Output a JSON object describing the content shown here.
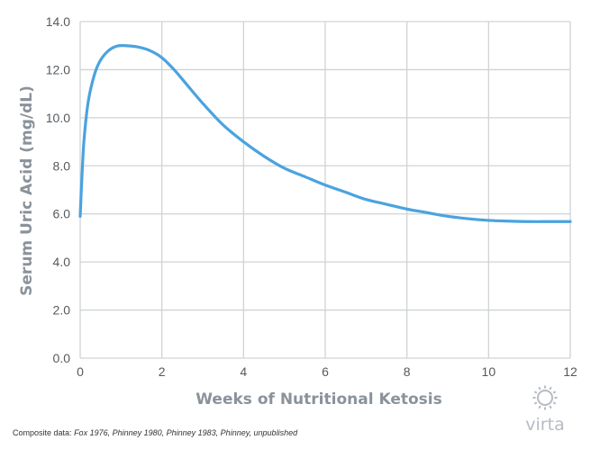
{
  "chart_data": {
    "type": "line",
    "title": "",
    "xlabel": "Weeks of Nutritional Ketosis",
    "ylabel": "Serum Uric Acid (mg/dL)",
    "xlim": [
      0,
      12
    ],
    "ylim": [
      0,
      14
    ],
    "x_ticks": [
      "0",
      "2",
      "4",
      "6",
      "8",
      "10",
      "12"
    ],
    "y_ticks": [
      "0.0",
      "2.0",
      "4.0",
      "6.0",
      "8.0",
      "10.0",
      "12.0",
      "14.0"
    ],
    "grid": true,
    "legend": "none",
    "series": [
      {
        "color": "#4aa3df",
        "x": [
          0,
          0.05,
          0.1,
          0.2,
          0.35,
          0.5,
          0.7,
          0.9,
          1.1,
          1.4,
          1.7,
          2.0,
          2.3,
          2.6,
          3.0,
          3.5,
          4.0,
          4.5,
          5.0,
          5.5,
          6.0,
          6.5,
          7.0,
          7.5,
          8.0,
          8.5,
          9.0,
          9.5,
          10.0,
          10.5,
          11.0,
          11.5,
          12.0
        ],
        "y": [
          5.9,
          7.8,
          9.2,
          10.7,
          11.8,
          12.4,
          12.8,
          12.98,
          13.0,
          12.95,
          12.8,
          12.5,
          12.0,
          11.4,
          10.6,
          9.7,
          9.0,
          8.4,
          7.9,
          7.55,
          7.2,
          6.9,
          6.6,
          6.4,
          6.2,
          6.05,
          5.9,
          5.8,
          5.73,
          5.7,
          5.68,
          5.68,
          5.68
        ]
      }
    ]
  },
  "footer": {
    "label": "Composite data:",
    "sources": "Fox 1976, Phinney 1980, Phinney 1983, Phinney, unpublished"
  },
  "logo": {
    "icon": "sun-gear-icon",
    "text": "virta",
    "color": "#b5bcc3"
  }
}
